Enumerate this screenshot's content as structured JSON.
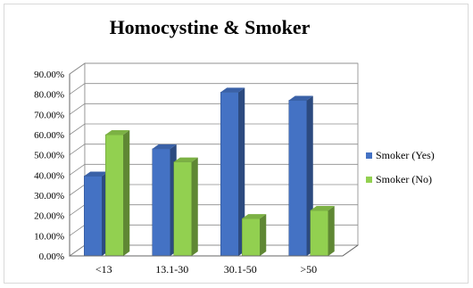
{
  "chart_data": {
    "type": "bar",
    "title": "Homocystine & Smoker",
    "categories": [
      "<13",
      "13.1-30",
      "30.1-50",
      ">50"
    ],
    "series": [
      {
        "name": "Smoker (Yes)",
        "values": [
          39.5,
          53,
          81,
          77
        ],
        "color": "#4472c4"
      },
      {
        "name": "Smoker (No)",
        "values": [
          60,
          46.5,
          18.5,
          22.5
        ],
        "color": "#92d050"
      }
    ],
    "yticks": [
      "0.00%",
      "10.00%",
      "20.00%",
      "30.00%",
      "40.00%",
      "50.00%",
      "60.00%",
      "70.00%",
      "80.00%",
      "90.00%"
    ],
    "ylim": [
      0,
      90
    ],
    "grid": true,
    "legend_position": "right",
    "xlabel": "",
    "ylabel": ""
  }
}
